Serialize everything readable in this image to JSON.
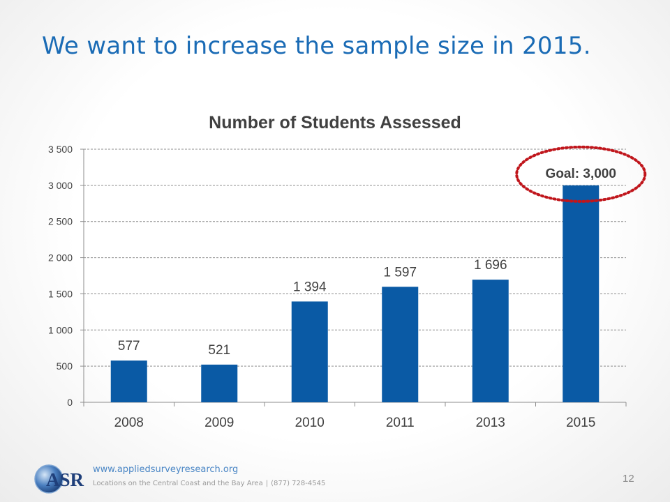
{
  "slide": {
    "title": "We want to increase the sample size in 2015.",
    "page_number": "12"
  },
  "footer": {
    "logo_text": "ASR",
    "url": "www.appliedsurveyresearch.org",
    "locations": "Locations on the Central Coast and the Bay Area",
    "separator": "|",
    "phone": "(877) 728-4545"
  },
  "chart_data": {
    "type": "bar",
    "title": "Number of Students Assessed",
    "categories": [
      "2008",
      "2009",
      "2010",
      "2011",
      "2013",
      "2015"
    ],
    "values": [
      577,
      521,
      1394,
      1597,
      1696,
      3000
    ],
    "data_labels": [
      "577",
      "521",
      "1 394",
      "1 597",
      "1 696",
      ""
    ],
    "ylim": [
      0,
      3500
    ],
    "yticks": [
      0,
      500,
      1000,
      1500,
      2000,
      2500,
      3000,
      3500
    ],
    "ytick_labels": [
      "0",
      "500",
      "1 000",
      "1 500",
      "2 000",
      "2 500",
      "3 000",
      "3 500"
    ],
    "xlabel": "",
    "ylabel": "",
    "grid": true,
    "bar_color": "#0a5aa5",
    "annotation": {
      "text": "Goal: 3,000",
      "target_category": "2015",
      "color": "#c0161c"
    }
  }
}
